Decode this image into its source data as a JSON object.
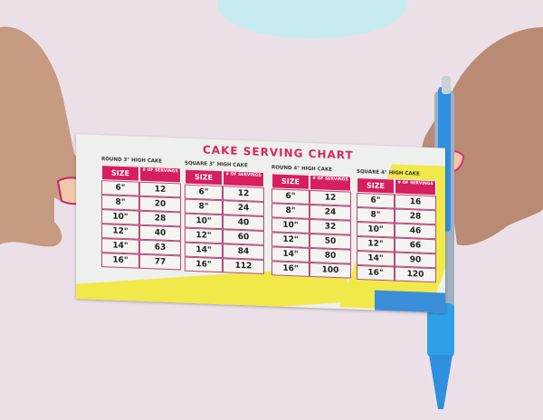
{
  "chart": {
    "title": "CAKE SERVING CHART",
    "size_header": "SIZE",
    "servings_header": "# OF SERVINGS",
    "tables": [
      {
        "caption": "ROUND 3\" HIGH CAKE",
        "rows": [
          [
            "6\"",
            "12"
          ],
          [
            "8\"",
            "20"
          ],
          [
            "10\"",
            "28"
          ],
          [
            "12\"",
            "40"
          ],
          [
            "14\"",
            "63"
          ],
          [
            "16\"",
            "77"
          ]
        ]
      },
      {
        "caption": "SQUARE 3\" HIGH CAKE",
        "rows": [
          [
            "6\"",
            "12"
          ],
          [
            "8\"",
            "24"
          ],
          [
            "10\"",
            "40"
          ],
          [
            "12\"",
            "60"
          ],
          [
            "14\"",
            "84"
          ],
          [
            "16\"",
            "112"
          ]
        ]
      },
      {
        "caption": "ROUND 4\" HIGH CAKE",
        "rows": [
          [
            "6\"",
            "12"
          ],
          [
            "8\"",
            "24"
          ],
          [
            "10\"",
            "32"
          ],
          [
            "12\"",
            "50"
          ],
          [
            "14\"",
            "80"
          ],
          [
            "16\"",
            "100"
          ]
        ]
      },
      {
        "caption": "SQUARE 4\" HIGH CAKE",
        "rows": [
          [
            "6\"",
            "16"
          ],
          [
            "8\"",
            "28"
          ],
          [
            "10\"",
            "46"
          ],
          [
            "12\"",
            "66"
          ],
          [
            "14\"",
            "90"
          ],
          [
            "16\"",
            "120"
          ]
        ]
      }
    ]
  },
  "colors": {
    "accent": "#d61f5f",
    "yellow": "#f1e84a",
    "blue": "#3a8fd8",
    "wall": "#ece0e8",
    "pen": "#2f8fe0"
  }
}
